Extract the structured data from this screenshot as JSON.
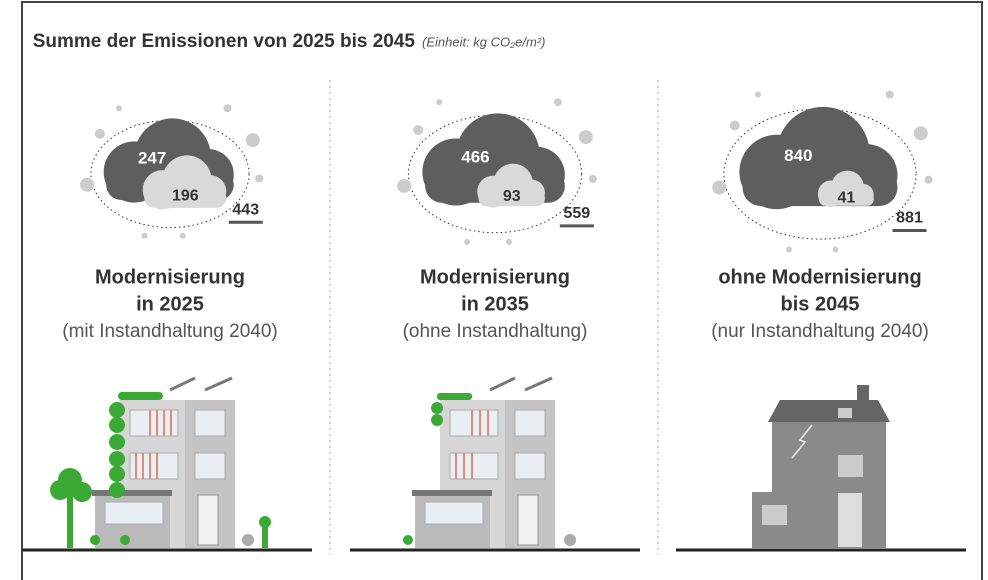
{
  "title": "Summe der Emissionen von 2025 bis 2045",
  "unit": "(Einheit: kg CO₂e/m²)",
  "panels": [
    {
      "values": [
        247,
        196
      ],
      "total": 443,
      "heading": [
        "Modernisierung",
        "in 2025"
      ],
      "note": "(mit Instandhaltung 2040)"
    },
    {
      "values": [
        466,
        93
      ],
      "total": 559,
      "heading": [
        "Modernisierung",
        "in 2035"
      ],
      "note": "(ohne Instandhaltung)"
    },
    {
      "values": [
        840,
        41
      ],
      "total": 881,
      "heading": [
        "ohne Modernisierung",
        "bis 2045"
      ],
      "note": "(nur Instandhaltung 2040)"
    }
  ]
}
